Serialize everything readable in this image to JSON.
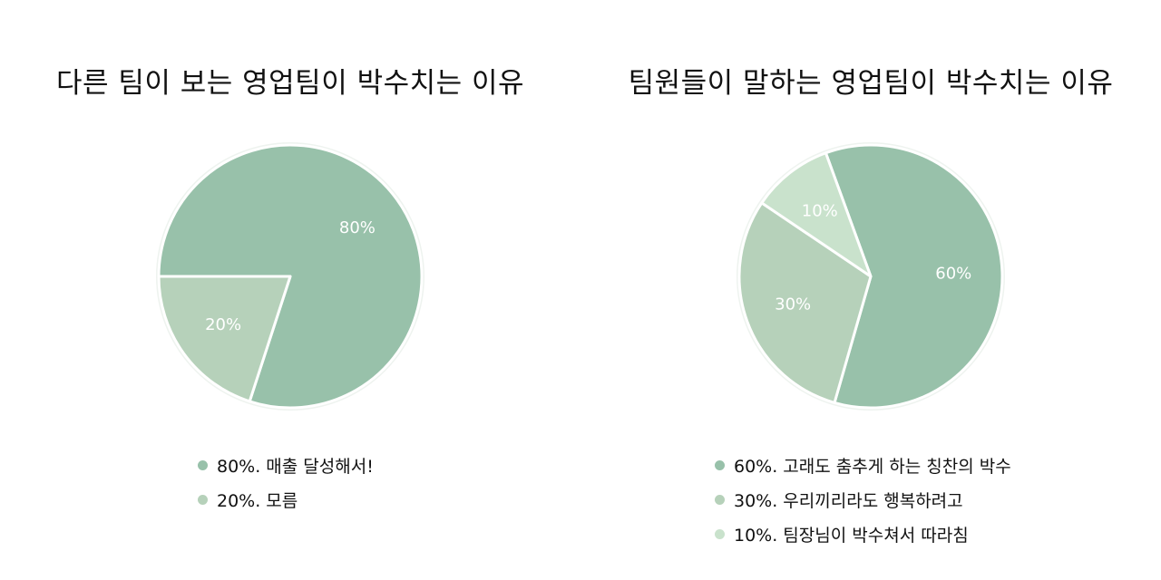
{
  "chart_data": [
    {
      "type": "pie",
      "title": "다른 팀이 보는 영업팀이 박수치는 이유",
      "slices": [
        {
          "label": "80%",
          "legend": "80%. 매출 달성해서!",
          "value": 80,
          "color": "#98c1aa"
        },
        {
          "label": "20%",
          "legend": "20%. 모름",
          "value": 20,
          "color": "#b6d1ba"
        }
      ]
    },
    {
      "type": "pie",
      "title": "팀원들이 말하는 영업팀이 박수치는 이유",
      "slices": [
        {
          "label": "60%",
          "legend": "60%. 고래도 춤추게 하는 칭찬의 박수",
          "value": 60,
          "color": "#98c1aa"
        },
        {
          "label": "30%",
          "legend": "30%. 우리끼리라도 행복하려고",
          "value": 30,
          "color": "#b6d1ba"
        },
        {
          "label": "10%",
          "legend": "10%. 팀장님이 박수쳐서 따라침",
          "value": 10,
          "color": "#c9e2cc"
        }
      ]
    }
  ]
}
